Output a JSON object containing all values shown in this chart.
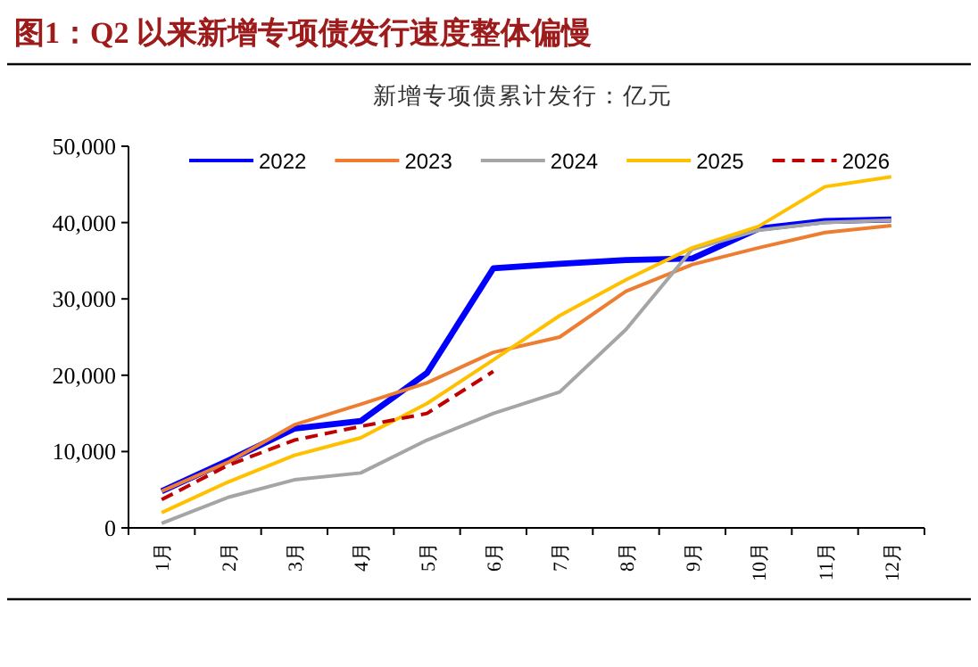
{
  "chart_data": {
    "type": "line",
    "title": "图1：Q2 以来新增专项债发行速度整体偏慢",
    "subtitle": "新增专项债累计发行：亿元",
    "categories": [
      "1月",
      "2月",
      "3月",
      "4月",
      "5月",
      "6月",
      "7月",
      "8月",
      "9月",
      "10月",
      "11月",
      "12月"
    ],
    "series": [
      {
        "name": "2022",
        "color": "#0000ff",
        "values": [
          4800,
          8800,
          13000,
          14000,
          20300,
          34000,
          34600,
          35100,
          35300,
          39200,
          40200,
          40400
        ]
      },
      {
        "name": "2023",
        "color": "#ed7d31",
        "values": [
          4800,
          8600,
          13500,
          16200,
          19000,
          23000,
          25000,
          31000,
          34500,
          36700,
          38700,
          39600
        ]
      },
      {
        "name": "2024",
        "color": "#a5a5a5",
        "values": [
          600,
          4000,
          6300,
          7200,
          11500,
          15000,
          17800,
          26000,
          36500,
          39000,
          40000,
          40300
        ]
      },
      {
        "name": "2025",
        "color": "#ffc000",
        "values": [
          2000,
          6000,
          9500,
          11800,
          16300,
          22000,
          27800,
          32500,
          36700,
          39500,
          44700,
          46000
        ]
      },
      {
        "name": "2026",
        "color": "#c00000",
        "line_style": "dashed",
        "values": [
          3700,
          8200,
          11500,
          13300,
          15000,
          20500,
          null,
          null,
          null,
          null,
          null,
          null
        ]
      }
    ],
    "ylim": [
      0,
      50000
    ],
    "yticks": [
      {
        "value": 0,
        "label": "0"
      },
      {
        "value": 10000,
        "label": "10,000"
      },
      {
        "value": 20000,
        "label": "20,000"
      },
      {
        "value": 30000,
        "label": "30,000"
      },
      {
        "value": 40000,
        "label": "40,000"
      },
      {
        "value": 50000,
        "label": "50,000"
      }
    ],
    "legend": "top"
  }
}
